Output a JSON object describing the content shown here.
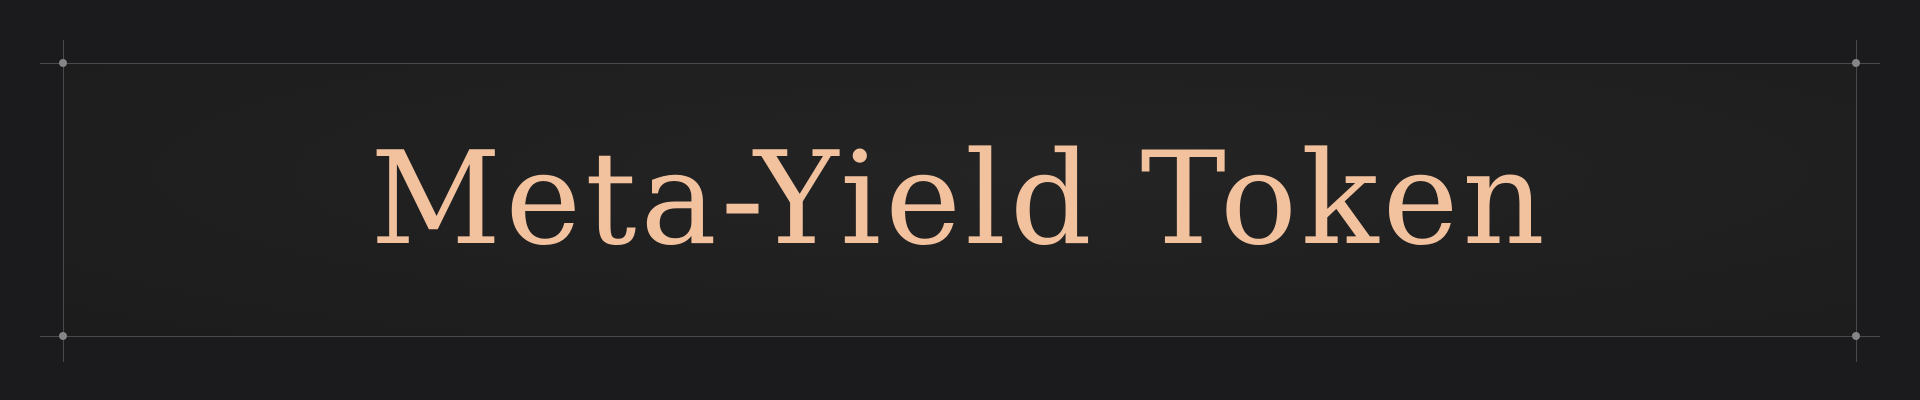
{
  "banner": {
    "title": "Meta-Yield Token"
  },
  "colors": {
    "background": "#1b1b1d",
    "panel": "#212121",
    "guide_line": "#4a4a4c",
    "guide_dot": "#858587",
    "title_text": "#f2c19e"
  }
}
